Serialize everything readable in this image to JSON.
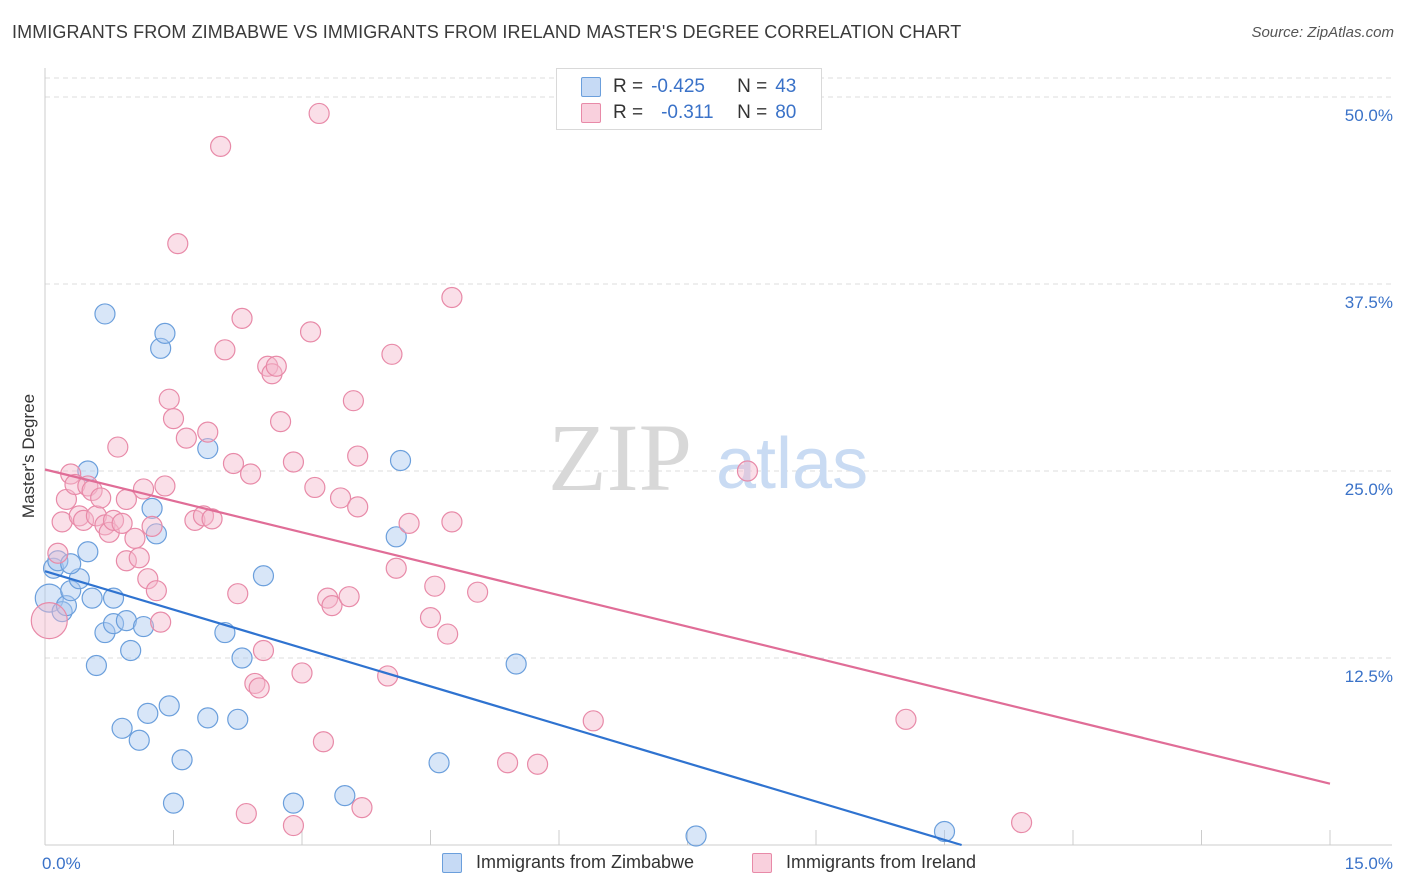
{
  "title": "IMMIGRANTS FROM ZIMBABWE VS IMMIGRANTS FROM IRELAND MASTER'S DEGREE CORRELATION CHART",
  "source": "Source: ZipAtlas.com",
  "watermark": {
    "zip": "ZIP",
    "atlas": "atlas"
  },
  "legend": {
    "rows": [
      {
        "r_label": "R =",
        "r_value": "-0.425",
        "n_label": "N =",
        "n_value": "43",
        "color": "#a9c8f0"
      },
      {
        "r_label": "R =",
        "r_value": "-0.311",
        "n_label": "N =",
        "n_value": "80",
        "color": "#f5b8cb"
      }
    ]
  },
  "bottom_legend": {
    "zimbabwe": "Immigrants from Zimbabwe",
    "ireland": "Immigrants from Ireland"
  },
  "colors": {
    "zimbabwe_fill": "#a9c8f0",
    "zimbabwe_stroke": "#6b9fdc",
    "zimbabwe_line": "#2f73d0",
    "ireland_fill": "#f5b8cb",
    "ireland_stroke": "#e88aa8",
    "ireland_line": "#e06d97",
    "axis_label": "#3a72c8",
    "grid": "#dddddd"
  },
  "chart_data": {
    "type": "scatter",
    "title": "IMMIGRANTS FROM ZIMBABWE VS IMMIGRANTS FROM IRELAND MASTER'S DEGREE CORRELATION CHART",
    "xlabel": "",
    "ylabel": "Master's Degree",
    "xlim": [
      0,
      15
    ],
    "ylim": [
      0,
      50
    ],
    "x_tick_labels": [
      "0.0%",
      "15.0%"
    ],
    "y_ticks": [
      12.5,
      25.0,
      37.5,
      50.0
    ],
    "y_tick_labels": [
      "12.5%",
      "25.0%",
      "37.5%",
      "50.0%"
    ],
    "grid": true,
    "legend_position": "top-center",
    "series": [
      {
        "name": "Immigrants from Zimbabwe",
        "points": [
          [
            0.05,
            16.5
          ],
          [
            0.1,
            18.5
          ],
          [
            0.15,
            19.0
          ],
          [
            0.2,
            15.6
          ],
          [
            0.25,
            16.0
          ],
          [
            0.3,
            17.0
          ],
          [
            0.4,
            17.8
          ],
          [
            0.5,
            19.6
          ],
          [
            0.5,
            25.0
          ],
          [
            0.55,
            16.5
          ],
          [
            0.6,
            12.0
          ],
          [
            0.7,
            14.2
          ],
          [
            0.8,
            16.5
          ],
          [
            0.8,
            14.8
          ],
          [
            0.9,
            7.8
          ],
          [
            0.95,
            15.0
          ],
          [
            0.7,
            35.5
          ],
          [
            1.0,
            13.0
          ],
          [
            1.1,
            7.0
          ],
          [
            1.15,
            14.6
          ],
          [
            1.2,
            8.8
          ],
          [
            1.25,
            22.5
          ],
          [
            1.3,
            20.8
          ],
          [
            1.35,
            33.2
          ],
          [
            1.4,
            34.2
          ],
          [
            1.45,
            9.3
          ],
          [
            1.5,
            2.8
          ],
          [
            1.6,
            5.7
          ],
          [
            1.9,
            26.5
          ],
          [
            1.9,
            8.5
          ],
          [
            2.1,
            14.2
          ],
          [
            2.25,
            8.4
          ],
          [
            2.3,
            12.5
          ],
          [
            2.55,
            18.0
          ],
          [
            2.9,
            2.8
          ],
          [
            3.5,
            3.3
          ],
          [
            4.1,
            20.6
          ],
          [
            4.15,
            25.7
          ],
          [
            4.6,
            5.5
          ],
          [
            5.5,
            12.1
          ],
          [
            7.6,
            0.6
          ],
          [
            10.5,
            0.9
          ],
          [
            0.3,
            18.8
          ]
        ],
        "sizes": [
          14,
          10,
          10,
          10,
          10,
          10,
          10,
          10,
          10,
          10,
          10,
          10,
          10,
          10,
          10,
          10,
          10,
          10,
          10,
          10,
          10,
          10,
          10,
          10,
          10,
          10,
          10,
          10,
          10,
          10,
          10,
          10,
          10,
          10,
          10,
          10,
          10,
          10,
          10,
          10,
          10,
          10,
          10
        ]
      },
      {
        "name": "Immigrants from Ireland",
        "points": [
          [
            0.05,
            15.0
          ],
          [
            0.15,
            19.5
          ],
          [
            0.2,
            21.6
          ],
          [
            0.25,
            23.1
          ],
          [
            0.3,
            24.8
          ],
          [
            0.35,
            24.1
          ],
          [
            0.4,
            22.0
          ],
          [
            0.45,
            21.7
          ],
          [
            0.5,
            24.0
          ],
          [
            0.55,
            23.7
          ],
          [
            0.6,
            22.0
          ],
          [
            0.65,
            23.2
          ],
          [
            0.7,
            21.4
          ],
          [
            0.75,
            20.9
          ],
          [
            0.8,
            21.7
          ],
          [
            0.85,
            26.6
          ],
          [
            0.9,
            21.5
          ],
          [
            0.95,
            23.1
          ],
          [
            0.95,
            19.0
          ],
          [
            1.05,
            20.5
          ],
          [
            1.1,
            19.2
          ],
          [
            1.15,
            23.8
          ],
          [
            1.2,
            17.8
          ],
          [
            1.25,
            21.3
          ],
          [
            1.3,
            17.0
          ],
          [
            1.35,
            14.9
          ],
          [
            1.4,
            24.0
          ],
          [
            1.45,
            29.8
          ],
          [
            1.5,
            28.5
          ],
          [
            1.55,
            40.2
          ],
          [
            1.65,
            27.2
          ],
          [
            1.75,
            21.7
          ],
          [
            1.85,
            22.0
          ],
          [
            1.9,
            27.6
          ],
          [
            1.95,
            21.8
          ],
          [
            2.05,
            46.7
          ],
          [
            2.1,
            33.1
          ],
          [
            2.2,
            25.5
          ],
          [
            2.25,
            16.8
          ],
          [
            2.3,
            35.2
          ],
          [
            2.4,
            24.8
          ],
          [
            2.45,
            10.8
          ],
          [
            2.5,
            10.5
          ],
          [
            2.55,
            13.0
          ],
          [
            2.6,
            32.0
          ],
          [
            2.65,
            31.5
          ],
          [
            2.7,
            32.0
          ],
          [
            2.75,
            28.3
          ],
          [
            2.9,
            25.6
          ],
          [
            3.0,
            11.5
          ],
          [
            3.1,
            34.3
          ],
          [
            3.15,
            23.9
          ],
          [
            3.2,
            48.9
          ],
          [
            3.25,
            6.9
          ],
          [
            3.3,
            16.5
          ],
          [
            3.35,
            16.0
          ],
          [
            3.45,
            23.2
          ],
          [
            3.55,
            16.6
          ],
          [
            3.6,
            29.7
          ],
          [
            3.65,
            22.6
          ],
          [
            3.65,
            26.0
          ],
          [
            3.7,
            2.5
          ],
          [
            4.0,
            11.3
          ],
          [
            4.05,
            32.8
          ],
          [
            4.1,
            18.5
          ],
          [
            4.25,
            21.5
          ],
          [
            4.5,
            15.2
          ],
          [
            4.55,
            17.3
          ],
          [
            4.7,
            14.1
          ],
          [
            4.75,
            21.6
          ],
          [
            4.75,
            36.6
          ],
          [
            5.05,
            16.9
          ],
          [
            5.4,
            5.5
          ],
          [
            5.75,
            5.4
          ],
          [
            6.4,
            8.3
          ],
          [
            8.2,
            25.0
          ],
          [
            10.05,
            8.4
          ],
          [
            11.4,
            1.5
          ],
          [
            2.35,
            2.1
          ],
          [
            2.9,
            1.3
          ]
        ],
        "sizes": [
          18,
          10,
          10,
          10,
          10,
          10,
          10,
          10,
          10,
          10,
          10,
          10,
          10,
          10,
          10,
          10,
          10,
          10,
          10,
          10,
          10,
          10,
          10,
          10,
          10,
          10,
          10,
          10,
          10,
          10,
          10,
          10,
          10,
          10,
          10,
          10,
          10,
          10,
          10,
          10,
          10,
          10,
          10,
          10,
          10,
          10,
          10,
          10,
          10,
          10,
          10,
          10,
          10,
          10,
          10,
          10,
          10,
          10,
          10,
          10,
          10,
          10,
          10,
          10,
          10,
          10,
          10,
          10,
          10,
          10,
          10,
          10,
          10,
          10,
          10,
          10,
          10,
          10,
          10,
          10
        ]
      }
    ],
    "trend_lines": [
      {
        "series": "Immigrants from Zimbabwe",
        "x": [
          0,
          10.7
        ],
        "y": [
          18.3,
          0
        ]
      },
      {
        "series": "Immigrants from Ireland",
        "x": [
          0,
          15
        ],
        "y": [
          25.1,
          4.1
        ]
      }
    ]
  }
}
